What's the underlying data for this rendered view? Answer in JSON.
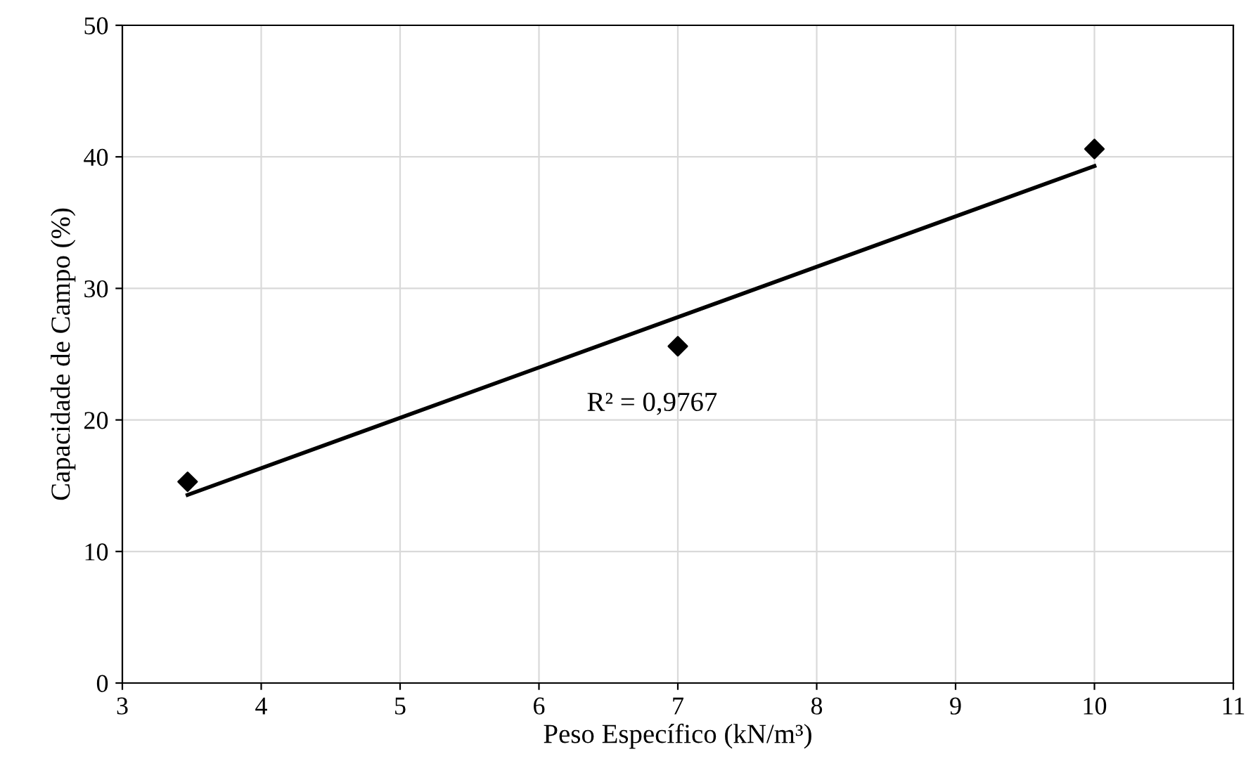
{
  "chart_data": {
    "type": "scatter",
    "xlabel": "Peso Específico (kN/m³)",
    "ylabel": "Capacidade de Campo (%)",
    "series": [
      {
        "color": "#000000",
        "marker": "diamond",
        "x": [
          3.47,
          7.0,
          10.0
        ],
        "values": [
          15.3,
          25.6,
          40.6
        ]
      },
      {
        "type": "line",
        "color": "#000000",
        "marker": "none",
        "line_style": "solid",
        "x": [
          3.47,
          10.0
        ],
        "values": [
          14.3,
          39.3
        ]
      }
    ],
    "annotations": [
      "R² = 0,9767"
    ],
    "xlim": [
      3,
      11
    ],
    "xticks": [
      3,
      4,
      5,
      6,
      7,
      8,
      9,
      10,
      11
    ],
    "ylim": [
      0,
      50
    ],
    "yticks": [
      0,
      10,
      20,
      30,
      40,
      50
    ],
    "grid": true,
    "legend": false
  }
}
